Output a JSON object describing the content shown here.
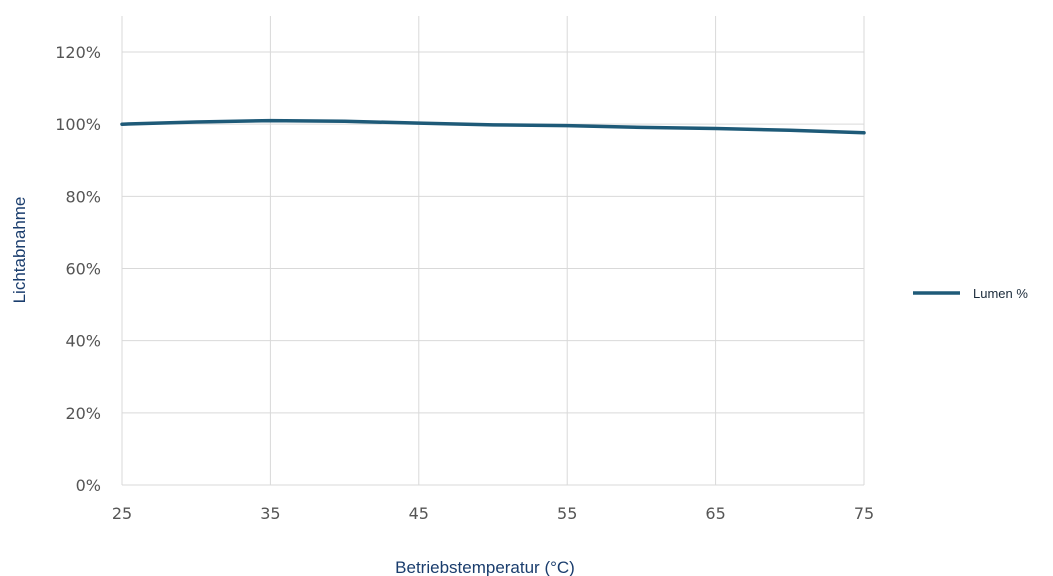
{
  "chart_data": {
    "type": "line",
    "xlabel": "Betriebstemperatur (°C)",
    "ylabel": "Lichtabnahme",
    "x": [
      25,
      35,
      45,
      55,
      65,
      75
    ],
    "x_tick_labels": [
      "25",
      "35",
      "45",
      "55",
      "65",
      "75"
    ],
    "y_tick_labels": [
      "0%",
      "20%",
      "40%",
      "60%",
      "80%",
      "100%",
      "120%"
    ],
    "ylim": [
      0,
      120
    ],
    "xlim": [
      25,
      75
    ],
    "grid": true,
    "legend_position": "right",
    "series": [
      {
        "name": "Lumen %",
        "color": "#1e5a78",
        "x": [
          25,
          30,
          35,
          40,
          45,
          50,
          55,
          60,
          65,
          70,
          75
        ],
        "y": [
          100,
          100.6,
          101,
          100.8,
          100.3,
          99.8,
          99.6,
          99.1,
          98.8,
          98.3,
          97.6
        ]
      }
    ]
  }
}
